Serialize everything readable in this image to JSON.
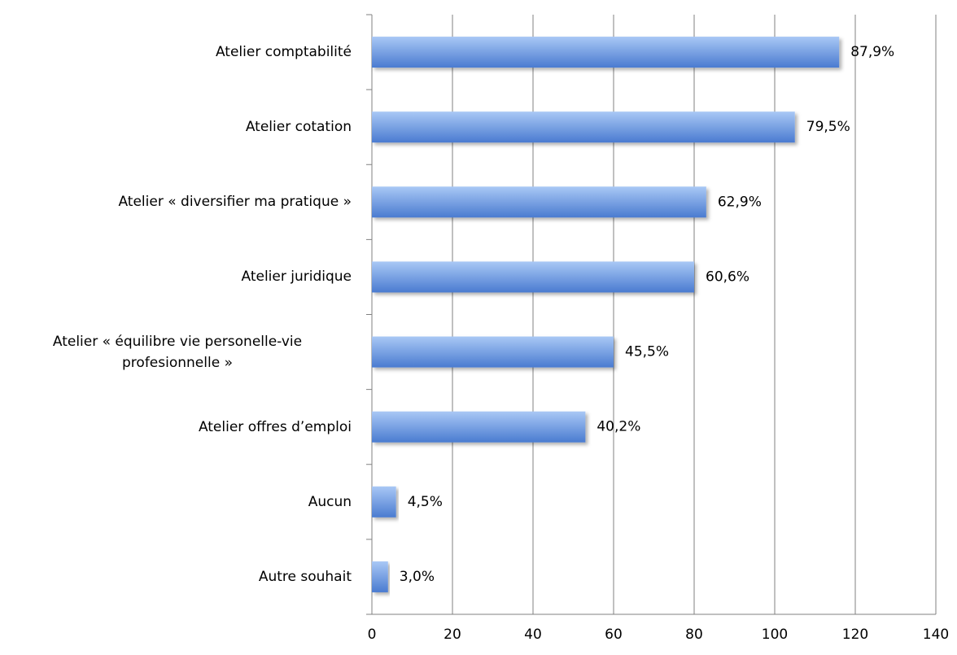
{
  "chart_data": {
    "type": "bar",
    "orientation": "horizontal",
    "categories": [
      "Atelier comptabilité",
      "Atelier cotation",
      "Atelier « diversifier ma pratique »",
      "Atelier juridique",
      "Atelier « équilibre vie personelle-vie profesionnelle »",
      "Atelier offres d’emploi",
      "Aucun",
      "Autre souhait"
    ],
    "values": [
      116,
      105,
      83,
      80,
      60,
      53,
      6,
      4
    ],
    "value_labels": [
      "87,9%",
      "79,5%",
      "62,9%",
      "60,6%",
      "45,5%",
      "40,2%",
      "4,5%",
      "3,0%"
    ],
    "color": "#4f81d6",
    "xlim": [
      0,
      140
    ],
    "xticks": [
      0,
      20,
      40,
      60,
      80,
      100,
      120,
      140
    ],
    "grid": true
  }
}
